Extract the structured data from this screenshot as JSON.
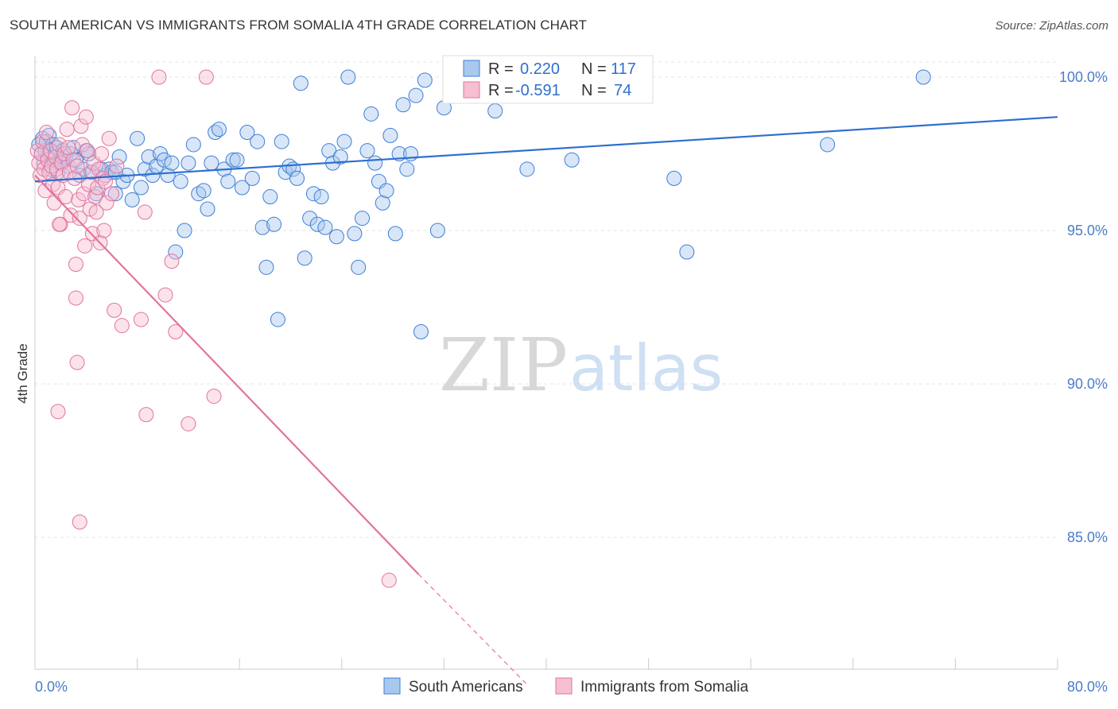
{
  "title": "SOUTH AMERICAN VS IMMIGRANTS FROM SOMALIA 4TH GRADE CORRELATION CHART",
  "source": "Source: ZipAtlas.com",
  "watermark": {
    "zip": "ZIP",
    "atlas": "atlas"
  },
  "colors": {
    "blue": "#3d7fd6",
    "blue_fill": "#a9c8ee",
    "pink": "#e2749c",
    "pink_fill": "#f6bfd2",
    "grid": "#e5e5e5"
  },
  "legend": {
    "row1": {
      "r_label": "R =",
      "r_value": "0.220",
      "n_label": "N =",
      "n_value": "117"
    },
    "row2": {
      "r_label": "R =",
      "r_value": "-0.591",
      "n_label": "N =",
      "n_value": "74"
    }
  },
  "chart_data": {
    "type": "scatter",
    "ylabel": "4th Grade",
    "xlim": [
      0,
      80
    ],
    "ylim": [
      80.7,
      100.7
    ],
    "x_tick_labels": [
      "0.0%",
      "80.0%"
    ],
    "y_ticks": [
      85,
      90,
      95,
      100
    ],
    "y_tick_labels": [
      "85.0%",
      "90.0%",
      "95.0%",
      "100.0%"
    ],
    "grid": "horizontal dashed",
    "series": [
      {
        "name": "South Americans",
        "color": "#3d7fd6",
        "trend": {
          "x": [
            0,
            80
          ],
          "y": [
            96.6,
            98.7
          ]
        },
        "points": [
          [
            0.3,
            97.8
          ],
          [
            0.5,
            97.5
          ],
          [
            0.6,
            98.0
          ],
          [
            0.7,
            97.2
          ],
          [
            0.8,
            97.6
          ],
          [
            0.9,
            97.9
          ],
          [
            1.0,
            97.4
          ],
          [
            1.1,
            98.1
          ],
          [
            1.2,
            97.0
          ],
          [
            1.3,
            97.6
          ],
          [
            1.4,
            97.8
          ],
          [
            1.5,
            97.3
          ],
          [
            1.6,
            97.5
          ],
          [
            1.7,
            97.7
          ],
          [
            1.8,
            96.9
          ],
          [
            2.0,
            97.2
          ],
          [
            2.2,
            97.6
          ],
          [
            2.4,
            97.4
          ],
          [
            2.6,
            97.1
          ],
          [
            2.8,
            97.5
          ],
          [
            3.0,
            97.7
          ],
          [
            3.2,
            97.3
          ],
          [
            3.5,
            96.8
          ],
          [
            3.8,
            97.0
          ],
          [
            4.0,
            97.6
          ],
          [
            4.2,
            97.5
          ],
          [
            4.5,
            96.9
          ],
          [
            4.8,
            96.2
          ],
          [
            5.2,
            97.0
          ],
          [
            5.5,
            96.8
          ],
          [
            5.8,
            97.0
          ],
          [
            6.0,
            96.9
          ],
          [
            6.3,
            96.2
          ],
          [
            6.6,
            97.4
          ],
          [
            6.9,
            96.6
          ],
          [
            7.2,
            96.8
          ],
          [
            7.6,
            96.0
          ],
          [
            8.0,
            98.0
          ],
          [
            8.3,
            96.4
          ],
          [
            8.6,
            97.0
          ],
          [
            8.9,
            97.4
          ],
          [
            9.2,
            96.8
          ],
          [
            9.5,
            97.1
          ],
          [
            9.8,
            97.5
          ],
          [
            10.1,
            97.3
          ],
          [
            10.4,
            96.8
          ],
          [
            10.7,
            97.2
          ],
          [
            11.0,
            94.3
          ],
          [
            11.4,
            96.6
          ],
          [
            11.7,
            95.0
          ],
          [
            12.0,
            97.2
          ],
          [
            12.4,
            97.8
          ],
          [
            12.8,
            96.2
          ],
          [
            13.2,
            96.3
          ],
          [
            13.5,
            95.7
          ],
          [
            13.8,
            97.2
          ],
          [
            14.1,
            98.2
          ],
          [
            14.4,
            98.3
          ],
          [
            14.8,
            97.0
          ],
          [
            15.1,
            96.6
          ],
          [
            15.5,
            97.3
          ],
          [
            15.8,
            97.3
          ],
          [
            16.2,
            96.4
          ],
          [
            16.6,
            98.2
          ],
          [
            17.0,
            96.7
          ],
          [
            17.4,
            97.9
          ],
          [
            17.8,
            95.1
          ],
          [
            18.1,
            93.8
          ],
          [
            18.4,
            96.1
          ],
          [
            18.7,
            95.2
          ],
          [
            19.0,
            92.1
          ],
          [
            19.3,
            97.9
          ],
          [
            19.6,
            96.9
          ],
          [
            19.9,
            97.1
          ],
          [
            20.2,
            97.0
          ],
          [
            20.5,
            96.7
          ],
          [
            20.8,
            99.8
          ],
          [
            21.1,
            94.1
          ],
          [
            21.5,
            95.4
          ],
          [
            21.8,
            96.2
          ],
          [
            22.1,
            95.2
          ],
          [
            22.4,
            96.1
          ],
          [
            22.7,
            95.1
          ],
          [
            23.0,
            97.6
          ],
          [
            23.3,
            97.2
          ],
          [
            23.6,
            94.8
          ],
          [
            23.9,
            97.4
          ],
          [
            24.2,
            97.9
          ],
          [
            24.5,
            100.0
          ],
          [
            25.0,
            94.9
          ],
          [
            25.3,
            93.8
          ],
          [
            25.6,
            95.4
          ],
          [
            26.0,
            97.6
          ],
          [
            26.3,
            98.8
          ],
          [
            26.6,
            97.2
          ],
          [
            26.9,
            96.6
          ],
          [
            27.2,
            95.9
          ],
          [
            27.5,
            96.3
          ],
          [
            27.8,
            98.1
          ],
          [
            28.2,
            94.9
          ],
          [
            28.5,
            97.5
          ],
          [
            28.8,
            99.1
          ],
          [
            29.1,
            97.0
          ],
          [
            29.4,
            97.5
          ],
          [
            29.8,
            99.4
          ],
          [
            30.2,
            91.7
          ],
          [
            30.5,
            99.9
          ],
          [
            31.5,
            95.0
          ],
          [
            32.0,
            99.0
          ],
          [
            32.5,
            99.7
          ],
          [
            33.0,
            100.0
          ],
          [
            36.0,
            98.9
          ],
          [
            37.0,
            99.7
          ],
          [
            38.5,
            97.0
          ],
          [
            42.0,
            97.3
          ],
          [
            50.0,
            96.7
          ],
          [
            51.0,
            94.3
          ],
          [
            62.0,
            97.8
          ],
          [
            69.5,
            100.0
          ],
          [
            6.3,
            96.9
          ]
        ]
      },
      {
        "name": "Immigrants from Somalia",
        "color": "#e2749c",
        "trend": {
          "x": [
            0,
            30
          ],
          "y": [
            96.8,
            83.8
          ]
        },
        "trend_dashed": {
          "x": [
            30,
            38.5
          ],
          "y": [
            83.8,
            80.2
          ]
        },
        "points": [
          [
            0.2,
            97.6
          ],
          [
            0.3,
            97.2
          ],
          [
            0.4,
            96.8
          ],
          [
            0.5,
            97.5
          ],
          [
            0.6,
            97.9
          ],
          [
            0.7,
            97.0
          ],
          [
            0.8,
            96.3
          ],
          [
            0.9,
            98.2
          ],
          [
            1.0,
            97.3
          ],
          [
            1.1,
            96.9
          ],
          [
            1.2,
            97.6
          ],
          [
            1.3,
            97.1
          ],
          [
            1.4,
            96.5
          ],
          [
            1.5,
            95.9
          ],
          [
            1.6,
            97.4
          ],
          [
            1.7,
            97.0
          ],
          [
            1.8,
            96.4
          ],
          [
            1.9,
            97.8
          ],
          [
            2.0,
            95.2
          ],
          [
            2.1,
            97.2
          ],
          [
            2.2,
            96.8
          ],
          [
            2.3,
            97.5
          ],
          [
            2.4,
            96.1
          ],
          [
            2.5,
            98.3
          ],
          [
            2.6,
            97.7
          ],
          [
            2.7,
            96.9
          ],
          [
            2.8,
            95.5
          ],
          [
            2.9,
            99.0
          ],
          [
            3.0,
            97.3
          ],
          [
            3.1,
            96.7
          ],
          [
            3.2,
            93.9
          ],
          [
            3.3,
            97.1
          ],
          [
            3.4,
            96.0
          ],
          [
            3.5,
            95.4
          ],
          [
            3.6,
            98.4
          ],
          [
            3.7,
            97.8
          ],
          [
            3.8,
            96.2
          ],
          [
            3.9,
            94.5
          ],
          [
            4.0,
            98.7
          ],
          [
            4.1,
            97.6
          ],
          [
            4.2,
            96.5
          ],
          [
            4.3,
            95.7
          ],
          [
            4.4,
            96.9
          ],
          [
            4.5,
            94.9
          ],
          [
            4.6,
            97.2
          ],
          [
            4.7,
            96.1
          ],
          [
            4.8,
            95.6
          ],
          [
            4.9,
            96.4
          ],
          [
            5.0,
            97.0
          ],
          [
            5.1,
            94.6
          ],
          [
            5.2,
            97.5
          ],
          [
            5.3,
            96.7
          ],
          [
            5.4,
            95.0
          ],
          [
            5.5,
            96.6
          ],
          [
            5.6,
            95.9
          ],
          [
            5.8,
            98.0
          ],
          [
            6.0,
            96.2
          ],
          [
            6.2,
            92.4
          ],
          [
            6.4,
            97.1
          ],
          [
            3.2,
            92.8
          ],
          [
            3.3,
            90.7
          ],
          [
            1.8,
            89.1
          ],
          [
            3.5,
            85.5
          ],
          [
            6.8,
            91.9
          ],
          [
            8.3,
            92.1
          ],
          [
            8.7,
            89.0
          ],
          [
            11.0,
            91.7
          ],
          [
            8.6,
            95.6
          ],
          [
            10.2,
            92.9
          ],
          [
            10.7,
            94.0
          ],
          [
            12.0,
            88.7
          ],
          [
            14.0,
            89.6
          ],
          [
            27.7,
            83.6
          ],
          [
            1.9,
            95.2
          ]
        ],
        "extra_points": [
          [
            9.7,
            100.0
          ],
          [
            13.4,
            100.0
          ]
        ]
      }
    ]
  },
  "bottom_legend": [
    "South Americans",
    "Immigrants from Somalia"
  ]
}
